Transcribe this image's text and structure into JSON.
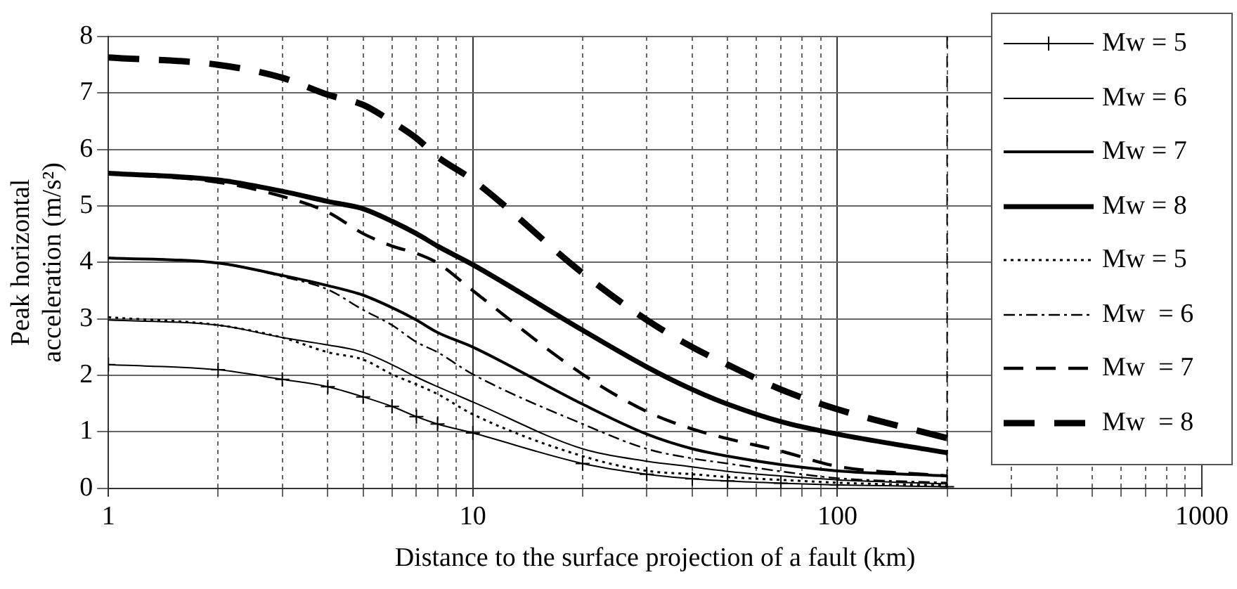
{
  "chart_data": {
    "type": "line",
    "xlabel": "Distance to the surface projection of a fault (km)",
    "ylabel": "Peak horizontal acceleration (m/s²)",
    "x": [
      1,
      2,
      3,
      4,
      5,
      6,
      7,
      8,
      10,
      20,
      30,
      40,
      50,
      70,
      100,
      200
    ],
    "series": [
      {
        "name": "Mw = 5",
        "color": "#000000",
        "line_style": "solid",
        "marker": "cross",
        "values": [
          2.19,
          2.1,
          1.93,
          1.8,
          1.62,
          1.45,
          1.27,
          1.14,
          0.98,
          0.44,
          0.25,
          0.17,
          0.13,
          0.09,
          0.06,
          0.03
        ]
      },
      {
        "name": "Mw = 6",
        "color": "#000000",
        "line_style": "solid",
        "values": [
          2.98,
          2.89,
          2.67,
          2.54,
          2.41,
          2.19,
          1.97,
          1.8,
          1.53,
          0.7,
          0.48,
          0.38,
          0.3,
          0.22,
          0.15,
          0.08
        ]
      },
      {
        "name": "Mw = 7",
        "color": "#000000",
        "line_style": "solid",
        "values": [
          4.08,
          3.99,
          3.77,
          3.59,
          3.42,
          3.2,
          2.98,
          2.76,
          2.5,
          1.49,
          0.96,
          0.7,
          0.57,
          0.42,
          0.31,
          0.22
        ]
      },
      {
        "name": "Mw = 8",
        "color": "#000000",
        "line_style": "solid",
        "values": [
          5.58,
          5.46,
          5.26,
          5.08,
          4.95,
          4.73,
          4.51,
          4.29,
          3.96,
          2.8,
          2.15,
          1.75,
          1.49,
          1.18,
          0.96,
          0.63
        ]
      },
      {
        "name": "Mw = 5",
        "color": "#000000",
        "line_style": "dotted",
        "values": [
          3.03,
          2.89,
          2.67,
          2.41,
          2.28,
          2.02,
          1.84,
          1.67,
          1.31,
          0.57,
          0.31,
          0.25,
          0.2,
          0.15,
          0.1,
          0.05
        ]
      },
      {
        "name": "Mw  = 6",
        "color": "#000000",
        "line_style": "dashdot",
        "values": [
          4.08,
          3.99,
          3.75,
          3.52,
          3.16,
          2.89,
          2.59,
          2.41,
          2.02,
          1.14,
          0.7,
          0.53,
          0.44,
          0.3,
          0.18,
          0.1
        ]
      },
      {
        "name": "Mw  = 7",
        "color": "#000000",
        "line_style": "dashed",
        "values": [
          5.58,
          5.42,
          5.17,
          4.89,
          4.51,
          4.29,
          4.16,
          3.99,
          3.5,
          2.02,
          1.36,
          1.05,
          0.88,
          0.66,
          0.39,
          0.22
        ]
      },
      {
        "name": "Mw  = 8",
        "color": "#000000",
        "line_style": "dashed",
        "values": [
          7.63,
          7.5,
          7.27,
          6.97,
          6.79,
          6.49,
          6.2,
          5.87,
          5.46,
          3.81,
          2.98,
          2.5,
          2.19,
          1.75,
          1.4,
          0.89
        ]
      }
    ],
    "log": "x",
    "xlim": [
      1,
      1000
    ],
    "xticks": [
      1,
      {
        "value": 2,
        "label": null
      },
      {
        "value": 3,
        "label": null
      },
      {
        "value": 4,
        "label": null
      },
      {
        "value": 5,
        "label": null
      },
      {
        "value": 6,
        "label": null
      },
      {
        "value": 7,
        "label": null
      },
      {
        "value": 8,
        "label": null
      },
      {
        "value": 9,
        "label": null
      },
      10,
      {
        "value": 20,
        "label": null
      },
      {
        "value": 30,
        "label": null
      },
      {
        "value": 40,
        "label": null
      },
      {
        "value": 50,
        "label": null
      },
      {
        "value": 60,
        "label": null
      },
      {
        "value": 70,
        "label": null
      },
      {
        "value": 80,
        "label": null
      },
      {
        "value": 90,
        "label": null
      },
      100,
      {
        "value": 200,
        "label": null
      },
      {
        "value": 300,
        "label": null
      },
      {
        "value": 400,
        "label": null
      },
      {
        "value": 500,
        "label": null
      },
      {
        "value": 600,
        "label": null
      },
      {
        "value": 700,
        "label": null
      },
      {
        "value": 800,
        "label": null
      },
      {
        "value": 900,
        "label": null
      },
      1000
    ],
    "ylim": [
      0,
      8
    ],
    "yticks": [
      0,
      1,
      2,
      3,
      4,
      5,
      6,
      7,
      8
    ],
    "grid": true,
    "legend": "right",
    "ref_lines": [
      {
        "axis": "x",
        "value": 200,
        "line_style": "dashed",
        "color": "#000000"
      }
    ]
  }
}
